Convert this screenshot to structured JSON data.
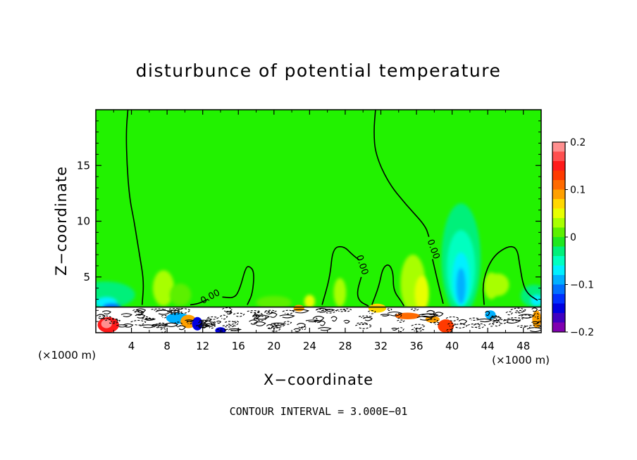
{
  "chart_data": {
    "type": "heatmap",
    "title": "disturbunce of potential temperature",
    "xlabel": "X−coordinate",
    "ylabel": "Z−coordinate",
    "x_unit": "(×1000 m)",
    "x_unit_right": "(×1000 m)",
    "xlim": [
      0,
      50
    ],
    "ylim": [
      0,
      20
    ],
    "x_ticks": [
      4,
      8,
      12,
      16,
      20,
      24,
      28,
      32,
      36,
      40,
      44,
      48
    ],
    "y_ticks": [
      5,
      10,
      15
    ],
    "colorbar": {
      "range": [
        -0.2,
        0.2
      ],
      "ticks": [
        {
          "value": 0.2,
          "label": "0.2"
        },
        {
          "value": 0.1,
          "label": "0.1"
        },
        {
          "value": 0.0,
          "label": "0"
        },
        {
          "value": -0.1,
          "label": "−0.1"
        },
        {
          "value": -0.2,
          "label": "−0.2"
        }
      ],
      "levels": [
        {
          "from": 0.18,
          "to": 0.2,
          "color": "#ff8f8f"
        },
        {
          "from": 0.16,
          "to": 0.18,
          "color": "#ff5050"
        },
        {
          "from": 0.14,
          "to": 0.16,
          "color": "#ff1a1a"
        },
        {
          "from": 0.12,
          "to": 0.14,
          "color": "#ff3a00"
        },
        {
          "from": 0.1,
          "to": 0.12,
          "color": "#ff6a00"
        },
        {
          "from": 0.08,
          "to": 0.1,
          "color": "#ffa000"
        },
        {
          "from": 0.06,
          "to": 0.08,
          "color": "#ffd800"
        },
        {
          "from": 0.04,
          "to": 0.06,
          "color": "#e8ff00"
        },
        {
          "from": 0.02,
          "to": 0.04,
          "color": "#a8ff00"
        },
        {
          "from": 0.0,
          "to": 0.02,
          "color": "#5cf000"
        },
        {
          "from": -0.02,
          "to": 0.0,
          "color": "#1fe81f"
        },
        {
          "from": -0.04,
          "to": -0.02,
          "color": "#00f07a"
        },
        {
          "from": -0.06,
          "to": -0.04,
          "color": "#00ffc0"
        },
        {
          "from": -0.08,
          "to": -0.06,
          "color": "#00f0ff"
        },
        {
          "from": -0.1,
          "to": -0.08,
          "color": "#00b0ff"
        },
        {
          "from": -0.12,
          "to": -0.1,
          "color": "#0070ff"
        },
        {
          "from": -0.14,
          "to": -0.12,
          "color": "#0030ff"
        },
        {
          "from": -0.16,
          "to": -0.14,
          "color": "#0000e0"
        },
        {
          "from": -0.18,
          "to": -0.16,
          "color": "#4000c0"
        },
        {
          "from": -0.2,
          "to": -0.18,
          "color": "#8000b0"
        }
      ]
    },
    "contour_interval": "CONTOUR INTERVAL = 3.000E−01",
    "contour_labels": [
      {
        "text": "0.00",
        "x": 13,
        "z": 3.0
      },
      {
        "text": "0.00",
        "x": 29.6,
        "z": 6.0
      },
      {
        "text": "0.00",
        "x": 37.6,
        "z": 7.4
      }
    ],
    "background_color": "#22f200",
    "lower_layer": {
      "top_z": 2.3,
      "color": "#ffffff"
    },
    "contour_zero_line": [
      [
        [
          3.6,
          20
        ],
        [
          3.4,
          18
        ],
        [
          3.5,
          15
        ],
        [
          3.8,
          12
        ],
        [
          4.3,
          10
        ],
        [
          4.9,
          7
        ],
        [
          5.4,
          4.6
        ],
        [
          5.2,
          2.5
        ]
      ],
      [
        [
          31.4,
          20
        ],
        [
          31.2,
          18
        ],
        [
          31.4,
          16
        ],
        [
          32.8,
          13.5
        ],
        [
          34.8,
          11.5
        ],
        [
          37.0,
          9.6
        ],
        [
          37.4,
          8.6
        ]
      ],
      [
        [
          10.6,
          2.5
        ],
        [
          11.5,
          2.6
        ],
        [
          12.6,
          3.0
        ]
      ],
      [
        [
          14.2,
          3.2
        ],
        [
          15.6,
          3.1
        ],
        [
          16.2,
          4.0
        ],
        [
          16.8,
          5.8
        ],
        [
          17.2,
          6.0
        ],
        [
          17.8,
          5.5
        ],
        [
          17.6,
          3.5
        ],
        [
          17.0,
          2.5
        ]
      ],
      [
        [
          25.4,
          2.5
        ],
        [
          26.3,
          5.0
        ],
        [
          26.6,
          7.6
        ],
        [
          27.8,
          7.8
        ],
        [
          28.8,
          7.0
        ],
        [
          29.6,
          6.5
        ]
      ],
      [
        [
          29.8,
          5.0
        ],
        [
          29.3,
          3.6
        ],
        [
          29.6,
          2.8
        ],
        [
          30.6,
          2.4
        ]
      ],
      [
        [
          31.0,
          2.5
        ],
        [
          31.8,
          4.2
        ],
        [
          32.2,
          5.8
        ],
        [
          32.9,
          6.2
        ],
        [
          33.4,
          5.4
        ],
        [
          33.4,
          3.8
        ],
        [
          34.3,
          2.8
        ],
        [
          34.6,
          2.4
        ]
      ],
      [
        [
          37.8,
          6.6
        ],
        [
          38.5,
          4.2
        ],
        [
          39.0,
          2.6
        ]
      ],
      [
        [
          43.6,
          2.5
        ],
        [
          43.4,
          4.6
        ],
        [
          44.5,
          6.8
        ],
        [
          46.3,
          7.8
        ],
        [
          47.3,
          7.6
        ],
        [
          47.6,
          6.0
        ],
        [
          48.0,
          4.2
        ],
        [
          48.6,
          3.4
        ],
        [
          49.6,
          2.9
        ]
      ]
    ],
    "anomalies": [
      {
        "x": 1.0,
        "z": 3.4,
        "rx": 3.4,
        "rz": 1.2,
        "value": -0.03
      },
      {
        "x": 1.2,
        "z": 2.7,
        "rx": 1.2,
        "rz": 0.5,
        "value": -0.07
      },
      {
        "x": 1.8,
        "z": 2.3,
        "rx": 1.0,
        "rz": 0.3,
        "value": -0.12
      },
      {
        "x": 5.0,
        "z": 1.4,
        "rx": 0.5,
        "rz": 0.5,
        "value": -0.09
      },
      {
        "x": 7.6,
        "z": 4.0,
        "rx": 1.2,
        "rz": 1.6,
        "value": 0.02
      },
      {
        "x": 9.5,
        "z": 3.4,
        "rx": 1.2,
        "rz": 1.0,
        "value": 0.01
      },
      {
        "x": 20.0,
        "z": 2.7,
        "rx": 2.0,
        "rz": 0.6,
        "value": 0.01
      },
      {
        "x": 24.0,
        "z": 2.8,
        "rx": 0.6,
        "rz": 0.6,
        "value": 0.05
      },
      {
        "x": 27.4,
        "z": 3.6,
        "rx": 0.7,
        "rz": 1.3,
        "value": 0.03
      },
      {
        "x": 35.6,
        "z": 4.4,
        "rx": 1.4,
        "rz": 2.6,
        "value": 0.02
      },
      {
        "x": 36.6,
        "z": 3.5,
        "rx": 0.8,
        "rz": 1.6,
        "value": 0.05
      },
      {
        "x": 41.0,
        "z": 6.6,
        "rx": 2.2,
        "rz": 5.0,
        "value": -0.03
      },
      {
        "x": 41.0,
        "z": 5.8,
        "rx": 1.6,
        "rz": 3.4,
        "value": -0.05
      },
      {
        "x": 41.0,
        "z": 4.8,
        "rx": 1.0,
        "rz": 2.4,
        "value": -0.07
      },
      {
        "x": 41.0,
        "z": 4.2,
        "rx": 0.5,
        "rz": 1.6,
        "value": -0.09
      },
      {
        "x": 44.4,
        "z": 4.2,
        "rx": 0.8,
        "rz": 1.2,
        "value": 0.02
      },
      {
        "x": 45.2,
        "z": 4.3,
        "rx": 1.2,
        "rz": 1.0,
        "value": 0.02
      },
      {
        "x": 49.2,
        "z": 3.3,
        "rx": 1.5,
        "rz": 1.0,
        "value": -0.03
      },
      {
        "x": 49.5,
        "z": 2.9,
        "rx": 0.7,
        "rz": 0.5,
        "value": -0.07
      }
    ],
    "lower_patches": [
      {
        "x": 1.4,
        "z": 0.7,
        "rx": 1.2,
        "rz": 0.7,
        "value": 0.14
      },
      {
        "x": 1.2,
        "z": 0.8,
        "rx": 0.6,
        "rz": 0.4,
        "value": 0.18
      },
      {
        "x": 9.2,
        "z": 1.3,
        "rx": 1.3,
        "rz": 0.5,
        "value": -0.1
      },
      {
        "x": 10.4,
        "z": 1.0,
        "rx": 0.9,
        "rz": 0.6,
        "value": 0.09
      },
      {
        "x": 11.4,
        "z": 0.8,
        "rx": 0.6,
        "rz": 0.6,
        "value": -0.15
      },
      {
        "x": 14.0,
        "z": 0.2,
        "rx": 0.6,
        "rz": 0.3,
        "value": -0.15
      },
      {
        "x": 22.8,
        "z": 2.2,
        "rx": 0.6,
        "rz": 0.3,
        "value": 0.08
      },
      {
        "x": 31.6,
        "z": 2.2,
        "rx": 1.0,
        "rz": 0.4,
        "value": 0.07
      },
      {
        "x": 35.0,
        "z": 1.5,
        "rx": 1.4,
        "rz": 0.3,
        "value": 0.11
      },
      {
        "x": 37.8,
        "z": 1.2,
        "rx": 0.8,
        "rz": 0.3,
        "value": 0.09
      },
      {
        "x": 39.3,
        "z": 0.6,
        "rx": 0.9,
        "rz": 0.6,
        "value": 0.13
      },
      {
        "x": 44.3,
        "z": 1.6,
        "rx": 0.6,
        "rz": 0.4,
        "value": -0.1
      },
      {
        "x": 49.5,
        "z": 1.2,
        "rx": 0.5,
        "rz": 0.8,
        "value": 0.09
      }
    ]
  }
}
